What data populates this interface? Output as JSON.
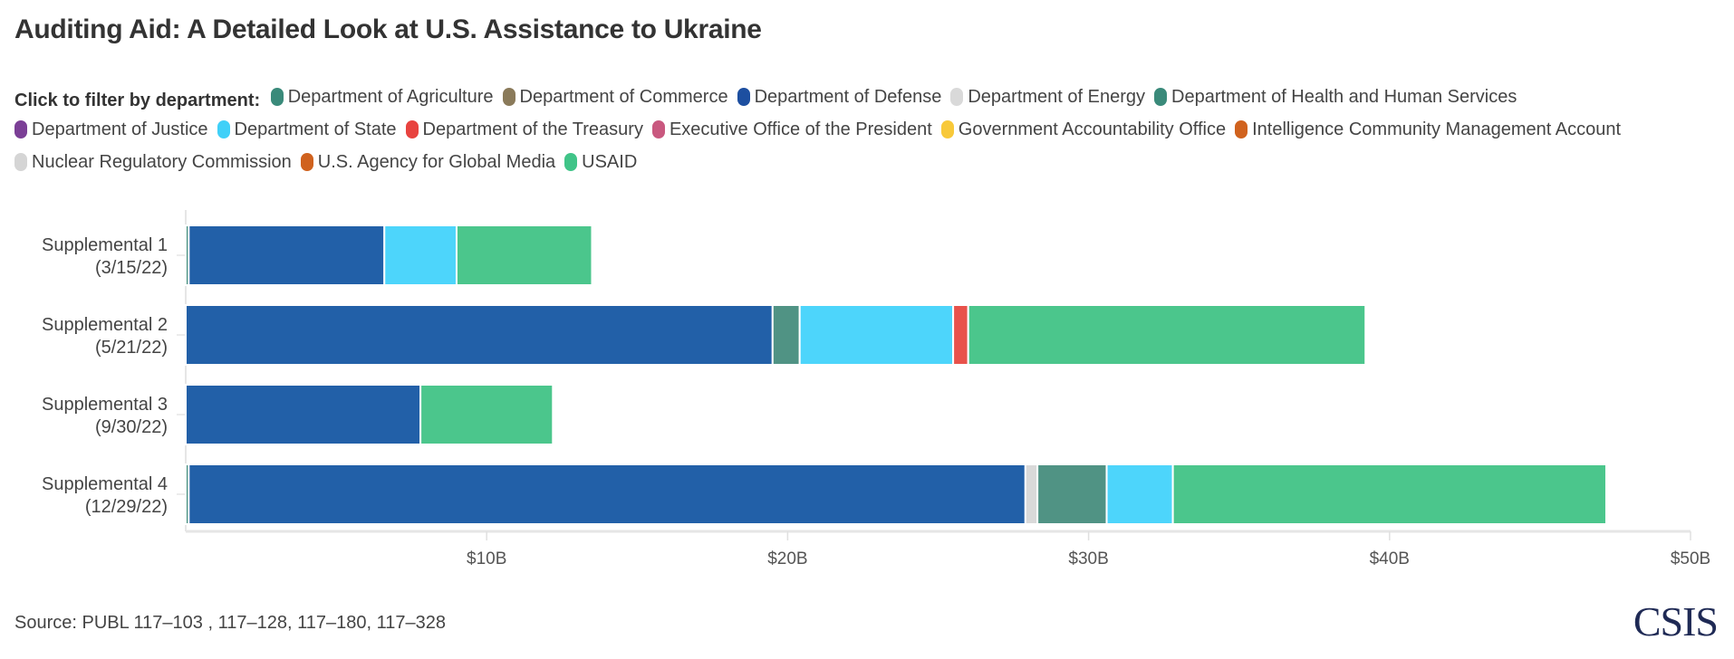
{
  "title": "Auditing Aid: A Detailed Look at U.S. Assistance to Ukraine",
  "legend": {
    "lead": "Click to filter by department:",
    "items": [
      {
        "label": "Department of Agriculture",
        "color": "#3a8a7a"
      },
      {
        "label": "Department of Commerce",
        "color": "#8a7a5a"
      },
      {
        "label": "Department of Defense",
        "color": "#1d4fa0"
      },
      {
        "label": "Department of Energy",
        "color": "#d9d9d9"
      },
      {
        "label": "Department of Health and Human Services",
        "color": "#3a8a7a"
      },
      {
        "label": "Department of Justice",
        "color": "#7b3f96"
      },
      {
        "label": "Department of State",
        "color": "#40d0f8"
      },
      {
        "label": "Department of the Treasury",
        "color": "#e8433f"
      },
      {
        "label": "Executive Office of the President",
        "color": "#c9587f"
      },
      {
        "label": "Government Accountability Office",
        "color": "#f8c93a"
      },
      {
        "label": "Intelligence Community Management Account",
        "color": "#d0621e"
      },
      {
        "label": "Nuclear Regulatory Commission",
        "color": "#d5d5d5"
      },
      {
        "label": "U.S. Agency for Global Media",
        "color": "#d0621e"
      },
      {
        "label": "USAID",
        "color": "#40c488"
      }
    ]
  },
  "chart_data": {
    "type": "bar",
    "orientation": "horizontal",
    "stacked": true,
    "title": "Auditing Aid: A Detailed Look at U.S. Assistance to Ukraine",
    "categories": [
      {
        "name": "Supplemental 1",
        "date": "(3/15/22)"
      },
      {
        "name": "Supplemental 2",
        "date": "(5/21/22)"
      },
      {
        "name": "Supplemental 3",
        "date": "(9/30/22)"
      },
      {
        "name": "Supplemental 4",
        "date": "(12/29/22)"
      }
    ],
    "unit": "billions USD",
    "series": [
      {
        "name": "Department of Agriculture",
        "color": "#3d8a78",
        "values": [
          0.1,
          0,
          0,
          0.1
        ]
      },
      {
        "name": "Department of Defense",
        "color": "#2260a8",
        "values": [
          6.5,
          19.5,
          7.8,
          27.8
        ]
      },
      {
        "name": "Department of Energy",
        "color": "#d9d9d9",
        "values": [
          0,
          0,
          0,
          0.4
        ]
      },
      {
        "name": "Department of Health and Human Services",
        "color": "#509384",
        "values": [
          0,
          0.9,
          0,
          2.3
        ]
      },
      {
        "name": "Department of State",
        "color": "#4dd5fb",
        "values": [
          2.4,
          5.1,
          0,
          2.2
        ]
      },
      {
        "name": "Department of the Treasury",
        "color": "#e8524b",
        "values": [
          0,
          0.5,
          0,
          0
        ]
      },
      {
        "name": "USAID",
        "color": "#4bc68c",
        "values": [
          4.5,
          13.2,
          4.4,
          14.4
        ]
      }
    ],
    "xlim": [
      0,
      50
    ],
    "ticks": [
      10,
      20,
      30,
      40,
      50
    ],
    "tick_labels": [
      "$10B",
      "$20B",
      "$30B",
      "$40B",
      "$50B"
    ],
    "grid": false,
    "legend_placement": "top"
  },
  "source": "Source: PUBL 117–103 , 117–128, 117–180, 117–328",
  "logo": "CSIS"
}
